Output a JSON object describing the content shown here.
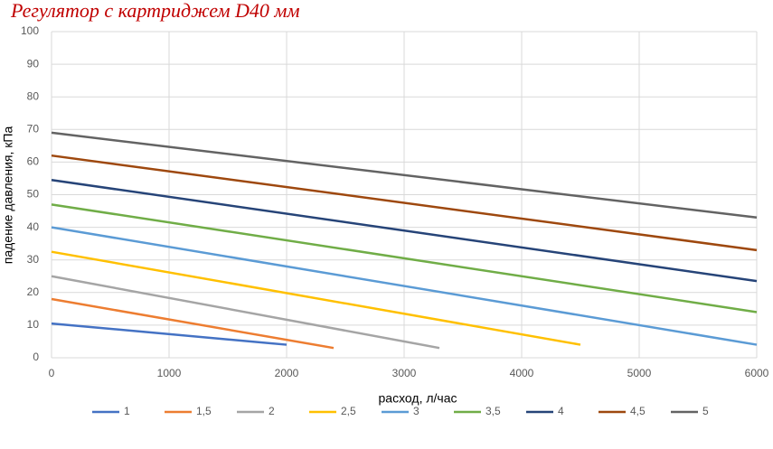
{
  "chart_data": {
    "type": "line",
    "title": "Регулятор с картриджем D40 мм",
    "x_label": "расход, л/час",
    "y_label": "падение давления, кПа",
    "xlim": [
      0,
      6000
    ],
    "xticks": [
      0,
      1000,
      2000,
      3000,
      4000,
      5000,
      6000
    ],
    "ylim": [
      0,
      100
    ],
    "yticks": [
      0,
      10,
      20,
      30,
      40,
      50,
      60,
      70,
      80,
      90,
      100
    ],
    "grid": true,
    "legend": "bottom",
    "series": [
      {
        "name": "1",
        "color": "#4472c4",
        "x": [
          0,
          2000
        ],
        "values": [
          10.5,
          4
        ]
      },
      {
        "name": "1,5",
        "color": "#ed7d31",
        "x": [
          0,
          2400
        ],
        "values": [
          18,
          3
        ]
      },
      {
        "name": "2",
        "color": "#a5a5a5",
        "x": [
          0,
          3300
        ],
        "values": [
          25,
          3
        ]
      },
      {
        "name": "2,5",
        "color": "#ffc000",
        "x": [
          0,
          4500
        ],
        "values": [
          32.5,
          4
        ]
      },
      {
        "name": "3",
        "color": "#5b9bd5",
        "x": [
          0,
          6000
        ],
        "values": [
          40,
          4
        ]
      },
      {
        "name": "3,5",
        "color": "#70ad47",
        "x": [
          0,
          6000
        ],
        "values": [
          47,
          14
        ]
      },
      {
        "name": "4",
        "color": "#264478",
        "x": [
          0,
          6000
        ],
        "values": [
          54.5,
          23.5
        ]
      },
      {
        "name": "4,5",
        "color": "#9e480e",
        "x": [
          0,
          6000
        ],
        "values": [
          62,
          33
        ]
      },
      {
        "name": "5",
        "color": "#636363",
        "x": [
          0,
          6000
        ],
        "values": [
          69,
          43
        ]
      }
    ]
  }
}
